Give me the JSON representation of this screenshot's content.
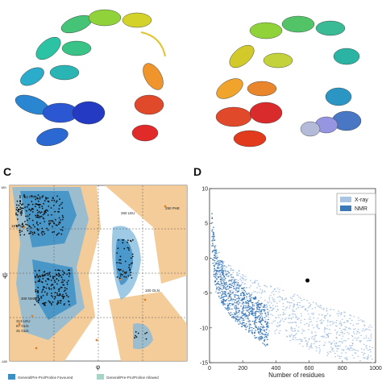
{
  "panels": {
    "c": {
      "letter": "C",
      "plot": {
        "y_symbol": "ψ",
        "x_symbol": "φ",
        "tick_top_left": "180",
        "tick_bottom_left": "-180",
        "residue_labels": [
          "82 PRO",
          "260 LEU",
          "100 GLN",
          "18 PRO",
          "290 PHE",
          "313 LEU",
          "67 GLN",
          "31 GLN",
          "308 NMR"
        ]
      },
      "legend": [
        "General/Pre-Pro/Proline Favoured",
        "General/Pre-Pro/Proline Allowed"
      ]
    },
    "d": {
      "letter": "D",
      "chart_data": {
        "type": "scatter",
        "xlabel": "Number of residues",
        "ylabel": "",
        "xlim": [
          0,
          1000
        ],
        "ylim": [
          -15,
          10
        ],
        "x_ticks": [
          "0",
          "200",
          "400",
          "600",
          "800",
          "1000"
        ],
        "y_ticks": [
          "10",
          "5",
          "0",
          "-5",
          "-10",
          "-15"
        ],
        "legend_position": "top-right",
        "series": [
          {
            "name": "X-ray",
            "color": "#a9c3e3",
            "trend": [
              [
                20,
                -1
              ],
              [
                100,
                -4
              ],
              [
                200,
                -5.5
              ],
              [
                300,
                -6.5
              ],
              [
                400,
                -7.5
              ],
              [
                500,
                -8.5
              ],
              [
                600,
                -9.5
              ],
              [
                700,
                -10.5
              ],
              [
                800,
                -11
              ],
              [
                900,
                -12
              ],
              [
                980,
                -13
              ]
            ]
          },
          {
            "name": "NMR",
            "color": "#3a78b8",
            "trend": [
              [
                10,
                4
              ],
              [
                30,
                -1
              ],
              [
                60,
                -3
              ],
              [
                100,
                -4.5
              ],
              [
                150,
                -6
              ],
              [
                200,
                -7
              ],
              [
                250,
                -8
              ],
              [
                300,
                -9
              ],
              [
                350,
                -10
              ]
            ]
          }
        ],
        "highlight_point": {
          "x": 590,
          "y": -3.2,
          "color": "#000000"
        }
      }
    }
  }
}
